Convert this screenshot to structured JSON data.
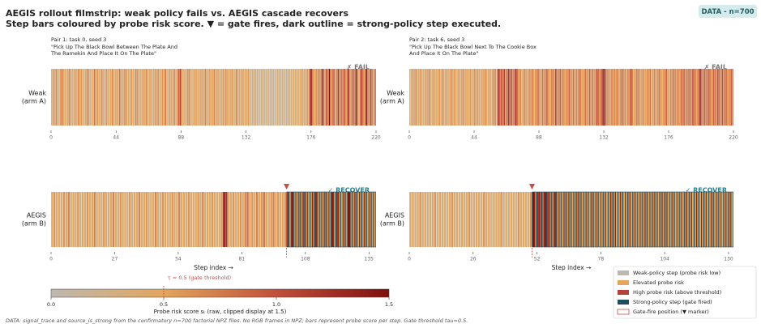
{
  "title": [
    "AEGIS rollout filmstrip: weak policy fails vs. AEGIS cascade recovers",
    "Step bars coloured by probe risk score. ▼ = gate fires, dark outline = strong-policy step executed."
  ],
  "badge": "DATA - n=700",
  "footer": "DATA: signal_trace and source_is_strong from the confirmatory n=700 factorial NPZ files. No RGB frames in NPZ; bars represent probe score per step. Gate threshold tau=0.5.",
  "chart_data": [
    {
      "type": "strip",
      "pair_label": "Pair 1:  task 0, seed 3",
      "instruction": [
        "\"Pick Up The Black Bowl Between The Plate And",
        "The Ramekin And Place It On The Plate\""
      ],
      "row_label": [
        "Weak",
        "(arm A)"
      ],
      "status": "✗  FAIL",
      "status_color": "#777777",
      "xlim": [
        0,
        220
      ],
      "xticks": [
        0,
        44,
        88,
        132,
        176,
        220
      ],
      "values": [
        0.4,
        0.6,
        0.3,
        0.7,
        0.5,
        0.2,
        0.6,
        0.8,
        0.4,
        0.5,
        0.3,
        0.6,
        0.7,
        0.4,
        0.2,
        0.5,
        0.6,
        0.3,
        0.7,
        0.5,
        0.6,
        0.4,
        0.3,
        0.5,
        0.7,
        0.6,
        0.2,
        0.4,
        0.5,
        0.8,
        0.3,
        0.6,
        0.4,
        0.5,
        0.7,
        0.3,
        0.2,
        0.6,
        0.5,
        0.4,
        0.5,
        0.7,
        0.4,
        0.3,
        0.6,
        0.5,
        0.8,
        0.4,
        0.3,
        0.6,
        0.7,
        0.5,
        0.4,
        0.2,
        0.6,
        0.5,
        0.3,
        0.7,
        0.6,
        0.4,
        0.3,
        0.5,
        0.6,
        0.4,
        0.7,
        0.3,
        0.5,
        0.6,
        0.2,
        0.4,
        0.6,
        0.5,
        0.7,
        0.3,
        0.4,
        0.6,
        0.5,
        0.8,
        0.4,
        0.3,
        0.6,
        0.4,
        0.5,
        0.7,
        0.3,
        0.6,
        0.9,
        1.1,
        0.6,
        0.4,
        0.5,
        0.3,
        0.6,
        0.7,
        0.4,
        0.5,
        0.3,
        0.6,
        0.4,
        0.5,
        0.3,
        0.6,
        0.5,
        0.4,
        0.7,
        0.5,
        0.3,
        0.6,
        0.4,
        0.5,
        0.7,
        0.3,
        0.6,
        0.5,
        0.4,
        0.3,
        0.6,
        0.5,
        0.7,
        0.4,
        0.5,
        0.3,
        0.6,
        0.4,
        0.5,
        0.7,
        0.3,
        0.5,
        0.4,
        0.6,
        0.3,
        0.5,
        0.4,
        0.6,
        0.3,
        0.2,
        0.4,
        0.3,
        0.5,
        0.2,
        0.2,
        0.1,
        0.2,
        0.3,
        0.1,
        0.2,
        0.4,
        0.2,
        0.1,
        0.3,
        0.2,
        0.1,
        0.2,
        0.3,
        0.2,
        0.1,
        0.2,
        0.3,
        0.1,
        0.2,
        0.3,
        0.2,
        0.4,
        0.3,
        0.5,
        0.2,
        0.4,
        0.3,
        0.5,
        0.6,
        0.4,
        0.5,
        0.3,
        0.6,
        0.5,
        1.4,
        1.2,
        0.6,
        0.5,
        0.7,
        0.6,
        0.8,
        0.5,
        1.3,
        0.9,
        0.6,
        1.1,
        0.7,
        1.5,
        0.6,
        0.8,
        1.0,
        0.5,
        0.7,
        1.2,
        0.6,
        0.9,
        0.7,
        1.1,
        0.6,
        0.8,
        1.3,
        0.6,
        0.7,
        1.0,
        0.6,
        1.4,
        0.8,
        0.5,
        0.9,
        1.2,
        0.6,
        0.7,
        1.5,
        0.8,
        0.6,
        1.1,
        0.7,
        0.5,
        0.9
      ]
    },
    {
      "type": "strip",
      "pair_label": "Pair 2:  task 6, seed 3",
      "instruction": [
        "\"Pick Up The Black Bowl Next To The Cookie Box",
        "And Place It On The Plate\""
      ],
      "row_label": [
        "Weak",
        "(arm A)"
      ],
      "status": "✗  FAIL",
      "status_color": "#777777",
      "xlim": [
        0,
        220
      ],
      "xticks": [
        0,
        44,
        88,
        132,
        176,
        220
      ],
      "values": [
        0.5,
        0.3,
        0.6,
        0.4,
        0.7,
        0.5,
        0.3,
        0.6,
        0.4,
        0.2,
        0.5,
        0.6,
        0.4,
        0.7,
        0.3,
        0.5,
        0.6,
        0.4,
        0.3,
        0.5,
        0.6,
        0.4,
        0.7,
        0.5,
        0.3,
        0.6,
        0.4,
        0.5,
        0.7,
        0.3,
        0.6,
        0.5,
        0.4,
        0.6,
        0.3,
        0.5,
        0.7,
        0.4,
        0.6,
        0.5,
        0.4,
        0.6,
        0.3,
        0.5,
        0.7,
        0.4,
        0.6,
        0.5,
        0.3,
        0.6,
        0.4,
        0.7,
        0.5,
        0.3,
        0.6,
        0.4,
        0.5,
        0.7,
        0.6,
        0.4,
        1.4,
        0.9,
        1.0,
        0.8,
        1.1,
        0.7,
        0.9,
        1.2,
        0.8,
        1.0,
        0.7,
        0.9,
        1.3,
        0.8,
        0.6,
        0.7,
        0.5,
        0.6,
        0.7,
        0.5,
        0.5,
        0.7,
        0.6,
        0.8,
        0.5,
        0.6,
        0.7,
        0.9,
        0.6,
        0.5,
        0.8,
        0.6,
        0.7,
        1.0,
        0.6,
        0.5,
        0.7,
        0.8,
        0.6,
        1.2,
        0.6,
        0.7,
        0.9,
        0.6,
        0.8,
        0.5,
        0.7,
        0.6,
        0.9,
        0.7,
        0.6,
        0.8,
        0.5,
        0.7,
        0.6,
        0.9,
        0.7,
        0.5,
        0.6,
        0.8,
        0.7,
        0.6,
        0.9,
        0.5,
        0.8,
        0.6,
        0.7,
        1.1,
        0.8,
        0.7,
        0.9,
        1.4,
        1.3,
        0.8,
        0.6,
        0.7,
        0.5,
        0.8,
        0.6,
        0.7,
        0.6,
        0.8,
        0.5,
        0.7,
        0.9,
        0.6,
        0.7,
        0.5,
        0.8,
        0.6,
        1.2,
        0.7,
        0.5,
        0.6,
        0.8,
        0.7,
        0.6,
        0.5,
        0.7,
        0.6,
        0.5,
        0.7,
        0.6,
        0.8,
        0.5,
        0.6,
        0.7,
        0.5,
        0.6,
        0.8,
        0.7,
        0.5,
        0.6,
        0.7,
        0.9,
        0.6,
        0.5,
        0.7,
        0.6,
        0.8,
        0.7,
        0.6,
        0.8,
        0.5,
        0.9,
        0.7,
        1.0,
        0.6,
        0.8,
        0.7,
        0.9,
        0.6,
        1.1,
        0.8,
        0.7,
        0.6,
        0.9,
        1.4,
        0.8,
        0.7,
        0.9,
        0.7,
        0.8,
        1.0,
        0.7,
        0.6,
        0.9,
        0.8,
        0.7,
        1.1,
        0.8,
        0.6,
        1.0,
        0.7,
        0.9,
        0.8,
        0.6,
        0.7,
        0.9,
        0.8
      ]
    },
    {
      "type": "strip",
      "row_label": [
        "AEGIS",
        "(arm B)"
      ],
      "status": "✓  RECOVER",
      "status_color": "#2a7f8a",
      "xlabel": "Step index  →",
      "xlim": [
        0,
        138
      ],
      "xticks": [
        0,
        27,
        54,
        81,
        108,
        135
      ],
      "gate_step": 100,
      "values": [
        0.4,
        0.6,
        0.3,
        0.5,
        0.2,
        0.6,
        0.4,
        0.7,
        0.3,
        0.5,
        0.4,
        0.6,
        0.2,
        0.5,
        0.3,
        0.6,
        0.4,
        0.5,
        0.7,
        0.3,
        0.5,
        0.3,
        0.6,
        0.4,
        0.2,
        0.5,
        0.7,
        0.4,
        0.3,
        0.6,
        0.5,
        0.4,
        0.3,
        0.6,
        0.2,
        0.5,
        0.4,
        0.7,
        0.3,
        0.5,
        0.6,
        0.4,
        0.3,
        0.5,
        0.7,
        0.4,
        0.2,
        0.6,
        0.5,
        0.3,
        0.4,
        0.6,
        0.5,
        0.3,
        0.7,
        0.4,
        0.5,
        0.3,
        0.6,
        0.4,
        0.3,
        0.5,
        0.6,
        0.4,
        0.7,
        0.3,
        0.5,
        0.4,
        0.6,
        0.5,
        0.3,
        0.4,
        0.6,
        1.5,
        1.2,
        0.5,
        0.4,
        0.6,
        0.3,
        0.5,
        0.6,
        0.4,
        0.7,
        0.8,
        0.5,
        0.6,
        0.4,
        0.7,
        0.5,
        0.6,
        0.8,
        0.5,
        0.4,
        0.6,
        0.7,
        0.5,
        0.6,
        0.4,
        0.5,
        0.6,
        1.2,
        0.6,
        1.4,
        0.7,
        0.5,
        0.8,
        0.6,
        1.1,
        0.7,
        0.5,
        0.6,
        0.8,
        1.3,
        0.6,
        0.7,
        0.5,
        0.9,
        0.6,
        0.7,
        1.4,
        0.6,
        1.2,
        0.7,
        0.5,
        0.8,
        0.6,
        1.5,
        0.7,
        0.6,
        0.9,
        0.5,
        0.7,
        0.6,
        0.8,
        0.5,
        0.7,
        0.6,
        0.5
      ]
    },
    {
      "type": "strip",
      "row_label": [
        "AEGIS",
        "(arm B)"
      ],
      "status": "✓  RECOVER",
      "status_color": "#2a7f8a",
      "xlabel": "Step index  →",
      "xlim": [
        0,
        132
      ],
      "xticks": [
        0,
        26,
        52,
        78,
        104,
        130
      ],
      "gate_step": 50,
      "values": [
        0.3,
        0.5,
        0.2,
        0.4,
        0.6,
        0.3,
        0.5,
        0.2,
        0.4,
        0.3,
        0.6,
        0.2,
        0.5,
        0.3,
        0.4,
        0.2,
        0.5,
        0.6,
        0.3,
        0.4,
        0.2,
        0.5,
        0.3,
        0.4,
        0.6,
        0.2,
        0.3,
        0.5,
        0.4,
        0.2,
        0.6,
        0.3,
        0.5,
        0.2,
        0.4,
        0.3,
        0.5,
        0.6,
        0.2,
        0.4,
        0.3,
        0.5,
        0.4,
        0.2,
        0.6,
        0.3,
        0.5,
        0.4,
        0.3,
        0.6,
        1.5,
        0.8,
        1.2,
        1.0,
        0.9,
        1.4,
        1.1,
        0.8,
        0.7,
        1.3,
        0.6,
        0.7,
        0.5,
        0.8,
        0.6,
        0.7,
        0.5,
        0.6,
        0.8,
        0.7,
        0.5,
        0.6,
        0.7,
        0.5,
        0.8,
        0.6,
        0.7,
        0.5,
        0.6,
        0.7,
        0.5,
        0.6,
        0.8,
        0.7,
        0.5,
        0.6,
        0.7,
        0.5,
        0.6,
        0.8,
        0.5,
        0.7,
        0.6,
        0.5,
        0.7,
        0.6,
        0.8,
        0.5,
        0.6,
        0.7,
        0.6,
        0.5,
        0.7,
        0.6,
        0.8,
        0.5,
        0.6,
        0.7,
        0.5,
        0.6,
        0.7,
        0.5,
        0.8,
        0.6,
        0.7,
        0.5,
        0.6,
        0.7,
        0.5,
        0.6,
        0.7,
        0.5,
        0.6,
        0.8,
        0.5,
        0.7,
        0.6,
        0.5,
        0.7,
        0.6,
        0.8,
        0.5
      ]
    }
  ],
  "colorbar": {
    "lim": [
      0,
      1.5
    ],
    "colors": [
      "#bdb8b0",
      "#e3a65c",
      "#c0503a",
      "#7f0f0f"
    ],
    "ticks": [
      {
        "value": 0,
        "label": "0.0"
      },
      {
        "value": 0.5,
        "label": "0.5"
      },
      {
        "value": 1,
        "label": "1.0"
      },
      {
        "value": 1.5,
        "label": "1.5"
      }
    ],
    "label": "Probe risk score  sₜ  (raw, clipped display at 1.5)",
    "threshold": 0.5,
    "threshold_label": "τ = 0.5  (gate threshold)",
    "strong_outline": "#1f4e5a",
    "gate_color": "#c0504d"
  },
  "legend": [
    {
      "label": "Weak-policy step  (probe risk low)",
      "color": "#bdb8b0"
    },
    {
      "label": "Elevated probe risk",
      "color": "#e3a65c"
    },
    {
      "label": "High probe risk  (above threshold)",
      "color": "#b0443c"
    },
    {
      "label": "Strong-policy step  (gate fired)",
      "color": "#1f4e5a"
    },
    {
      "label": "Gate-fire position  (▼ marker)",
      "color": "#ffffff",
      "outline": "#c0504d"
    }
  ]
}
